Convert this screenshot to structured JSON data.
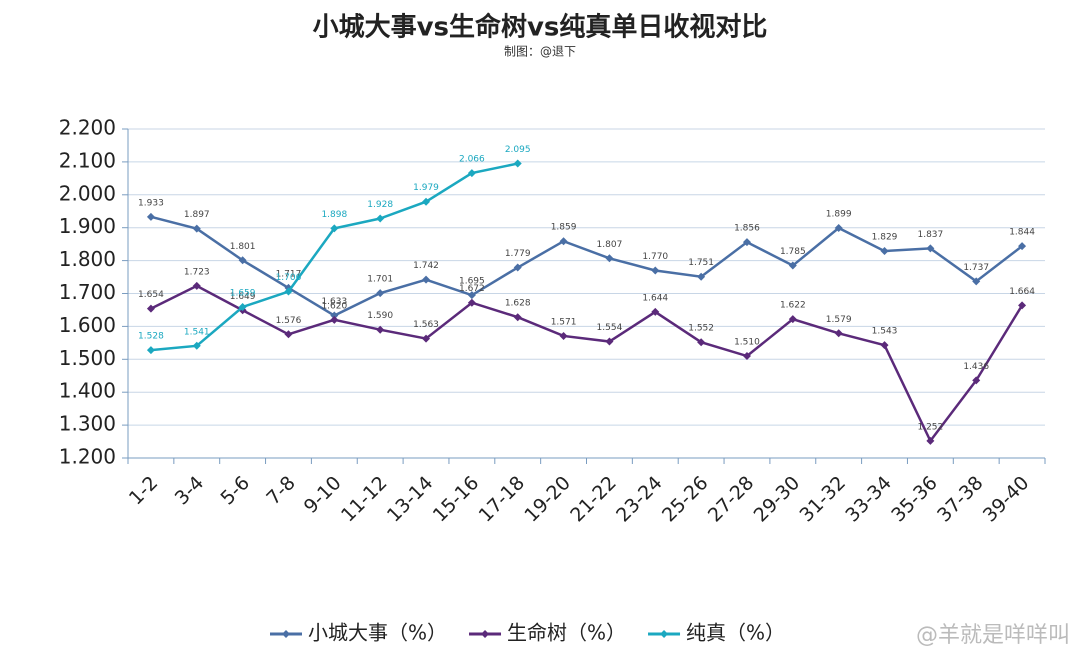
{
  "chart_data": {
    "type": "line",
    "title": "小城大事vs生命树vs纯真单日收视对比",
    "subtitle": "制图：@退下",
    "watermark": "@羊就是咩咩叫",
    "categories": [
      "1-2",
      "3-4",
      "5-6",
      "7-8",
      "9-10",
      "11-12",
      "13-14",
      "15-16",
      "17-18",
      "19-20",
      "21-22",
      "23-24",
      "25-26",
      "27-28",
      "29-30",
      "31-32",
      "33-34",
      "35-36",
      "37-38",
      "39-40"
    ],
    "series": [
      {
        "name": "小城大事（%）",
        "color": "#4a6fa5",
        "values": [
          1.933,
          1.897,
          1.801,
          1.717,
          1.633,
          1.701,
          1.742,
          1.695,
          1.779,
          1.859,
          1.807,
          1.77,
          1.751,
          1.856,
          1.785,
          1.899,
          1.829,
          1.837,
          1.737,
          1.844
        ],
        "value_labels": [
          "1.933",
          "1.897",
          "1.801",
          "1.717",
          "1.633",
          "1.701",
          "1.742",
          "1.695",
          "1.779",
          "1.859",
          "1.807",
          "1.770",
          "1.751",
          "1.856",
          "1.785",
          "1.899",
          "1.829",
          "1.837",
          "1.737",
          "1.844"
        ]
      },
      {
        "name": "生命树（%）",
        "color": "#5b2a7a",
        "values": [
          1.654,
          1.723,
          1.649,
          1.576,
          1.62,
          1.59,
          1.563,
          1.672,
          1.628,
          1.571,
          1.554,
          1.644,
          1.552,
          1.51,
          1.622,
          1.579,
          1.543,
          1.252,
          1.436,
          1.664
        ],
        "value_labels": [
          "1.654",
          "1.723",
          "1.649",
          "1.576",
          "1.620",
          "1.590",
          "1.563",
          "1.672",
          "1.628",
          "1.571",
          "1.554",
          "1.644",
          "1.552",
          "1.510",
          "1.622",
          "1.579",
          "1.543",
          "1.252",
          "1.436",
          "1.664"
        ]
      },
      {
        "name": "纯真（%）",
        "color": "#1ba8c0",
        "values": [
          1.528,
          1.541,
          1.659,
          1.706,
          1.898,
          1.928,
          1.979,
          2.066,
          2.095,
          null,
          null,
          null,
          null,
          null,
          null,
          null,
          null,
          null,
          null,
          null
        ],
        "value_labels": [
          "1.528",
          "1.541",
          "1.659",
          "1.706",
          "1.898",
          "1.928",
          "1.979",
          "2.066",
          "2.095",
          null,
          null,
          null,
          null,
          null,
          null,
          null,
          null,
          null,
          null,
          null
        ]
      }
    ],
    "ylim": [
      1.2,
      2.2
    ],
    "yticks": [
      {
        "value": 1.2,
        "label": "1.200"
      },
      {
        "value": 1.3,
        "label": "1.300"
      },
      {
        "value": 1.4,
        "label": "1.400"
      },
      {
        "value": 1.5,
        "label": "1.500"
      },
      {
        "value": 1.6,
        "label": "1.600"
      },
      {
        "value": 1.7,
        "label": "1.700"
      },
      {
        "value": 1.8,
        "label": "1.800"
      },
      {
        "value": 1.9,
        "label": "1.900"
      },
      {
        "value": 2.0,
        "label": "2.000"
      },
      {
        "value": 2.1,
        "label": "2.100"
      },
      {
        "value": 2.2,
        "label": "2.200"
      }
    ],
    "grid": true,
    "legend": "bottom"
  }
}
